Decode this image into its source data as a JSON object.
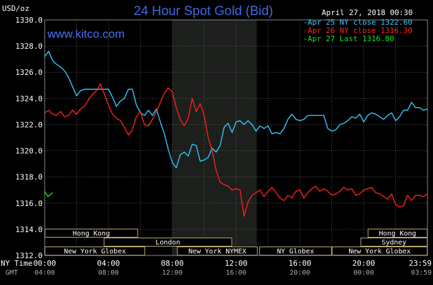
{
  "header": {
    "title": "24 Hour Spot Gold (Bid)",
    "units": "USD/oz",
    "date_time": "April 27, 2018 00:30",
    "watermark": "www.kitco.com"
  },
  "legend": {
    "entries": [
      {
        "label": "Apr 25 NY close 1322.60",
        "color": "#33c8ff"
      },
      {
        "label": "Apr 26 NY close 1316.30",
        "color": "#ff2020"
      },
      {
        "label": "Apr 27 Last 1316.80",
        "color": "#22dd22"
      }
    ]
  },
  "x_axis": {
    "ny_time_label": "NY Time",
    "gmt_label": "GMT",
    "ticks": [
      {
        "hour": 0,
        "ny": "00:00",
        "gmt": "04:00"
      },
      {
        "hour": 4,
        "ny": "04:00",
        "gmt": "08:00"
      },
      {
        "hour": 8,
        "ny": "08:00",
        "gmt": "12:00"
      },
      {
        "hour": 12,
        "ny": "12:00",
        "gmt": "16:00"
      },
      {
        "hour": 16,
        "ny": "16:00",
        "gmt": "20:00"
      },
      {
        "hour": 20,
        "ny": "20:00",
        "gmt": "00:00"
      },
      {
        "hour": 24,
        "ny": "23:59",
        "gmt": "03:59"
      }
    ]
  },
  "sessions": [
    {
      "label": "Hong Kong",
      "start": 0.0,
      "end": 5.85,
      "row": 0
    },
    {
      "label": "London",
      "start": 3.7,
      "end": 11.75,
      "row": 1
    },
    {
      "label": "New York Globex",
      "start": 0.0,
      "end": 6.3,
      "row": 2
    },
    {
      "label": "New York NYMEX",
      "start": 8.3,
      "end": 13.35,
      "row": 2
    },
    {
      "label": "NY Globex",
      "start": 13.45,
      "end": 18.0,
      "row": 2
    },
    {
      "label": "Hong Kong",
      "start": 20.25,
      "end": 24.0,
      "row": 0
    },
    {
      "label": "Sydney",
      "start": 19.8,
      "end": 24.0,
      "row": 1
    },
    {
      "label": "New York Globex",
      "start": 18.0,
      "end": 24.0,
      "row": 2
    }
  ],
  "chart_data": {
    "type": "line",
    "title": "24 Hour Spot Gold (Bid)",
    "ylabel": "USD/oz",
    "ylim": [
      1312.0,
      1330.0
    ],
    "xlim_hours": [
      0,
      24
    ],
    "y_ticks": [
      1312.0,
      1314.0,
      1316.0,
      1318.0,
      1320.0,
      1322.0,
      1324.0,
      1326.0,
      1328.0,
      1330.0
    ],
    "grid": true,
    "legend_position": "top-right",
    "highlight_hours": [
      8.0,
      13.3
    ],
    "series": [
      {
        "name": "Apr 25",
        "color": "#33c8ff",
        "x": [
          0,
          0.25,
          0.5,
          0.75,
          1.0,
          1.25,
          1.5,
          1.75,
          2.0,
          2.25,
          2.5,
          2.75,
          3.0,
          3.5,
          4.0,
          4.25,
          4.5,
          4.75,
          5.0,
          5.25,
          5.5,
          5.75,
          6.0,
          6.25,
          6.5,
          6.75,
          7.0,
          7.25,
          7.5,
          7.75,
          8.0,
          8.25,
          8.5,
          8.75,
          9.0,
          9.25,
          9.5,
          9.75,
          10.0,
          10.25,
          10.5,
          10.75,
          11.0,
          11.25,
          11.5,
          11.75,
          12.0,
          12.25,
          12.5,
          12.75,
          13.0,
          13.25,
          13.5,
          13.75,
          14.0,
          14.25,
          14.5,
          14.75,
          15.0,
          15.25,
          15.5,
          15.75,
          16.0,
          16.25,
          16.5,
          16.75,
          17.0,
          17.25,
          17.5,
          17.75,
          18.0,
          18.25,
          18.5,
          18.75,
          19.0,
          19.25,
          19.5,
          19.75,
          20.0,
          20.25,
          20.5,
          20.75,
          21.0,
          21.25,
          21.5,
          21.75,
          22.0,
          22.25,
          22.5,
          22.75,
          23.0,
          23.25,
          23.5,
          23.75,
          24.0
        ],
        "values": [
          1327.2,
          1327.6,
          1326.9,
          1326.6,
          1326.4,
          1326.1,
          1325.6,
          1324.9,
          1324.2,
          1324.6,
          1324.7,
          1324.7,
          1324.7,
          1324.7,
          1324.7,
          1324.1,
          1323.4,
          1323.8,
          1324.0,
          1324.7,
          1324.7,
          1323.5,
          1322.9,
          1322.7,
          1323.1,
          1322.7,
          1323.2,
          1322.2,
          1321.3,
          1320.1,
          1319.1,
          1318.7,
          1319.7,
          1319.9,
          1319.6,
          1320.5,
          1320.4,
          1319.2,
          1319.3,
          1319.5,
          1320.2,
          1319.9,
          1320.4,
          1321.8,
          1322.1,
          1321.4,
          1322.2,
          1322.3,
          1322.0,
          1322.3,
          1322.0,
          1321.5,
          1321.9,
          1321.7,
          1321.9,
          1321.3,
          1321.4,
          1321.3,
          1321.7,
          1322.4,
          1322.8,
          1322.4,
          1322.3,
          1322.4,
          1322.7,
          1322.7,
          1322.7,
          1322.7,
          1322.7,
          1321.7,
          1321.5,
          1321.6,
          1322.0,
          1322.1,
          1322.3,
          1322.6,
          1322.5,
          1322.8,
          1322.2,
          1322.7,
          1322.9,
          1322.8,
          1322.6,
          1322.4,
          1322.7,
          1322.9,
          1322.3,
          1322.6,
          1323.1,
          1323.1,
          1323.7,
          1323.3,
          1323.3,
          1323.1,
          1323.2
        ]
      },
      {
        "name": "Apr 26",
        "color": "#ff2020",
        "x": [
          0,
          0.25,
          0.5,
          0.75,
          1.0,
          1.25,
          1.5,
          1.75,
          2.0,
          2.25,
          2.5,
          2.75,
          3.0,
          3.25,
          3.5,
          3.75,
          4.0,
          4.25,
          4.5,
          4.75,
          5.0,
          5.25,
          5.5,
          5.75,
          6.0,
          6.25,
          6.5,
          6.75,
          7.0,
          7.25,
          7.5,
          7.75,
          8.0,
          8.25,
          8.5,
          8.75,
          9.0,
          9.25,
          9.5,
          9.75,
          10.0,
          10.25,
          10.5,
          10.75,
          11.0,
          11.25,
          11.5,
          11.75,
          12.0,
          12.25,
          12.5,
          12.75,
          13.0,
          13.25,
          13.5,
          13.75,
          14.0,
          14.25,
          14.5,
          14.75,
          15.0,
          15.25,
          15.5,
          15.75,
          16.0,
          16.25,
          16.5,
          16.75,
          17.0,
          17.25,
          17.5,
          17.75,
          18.0,
          18.25,
          18.5,
          18.75,
          19.0,
          19.25,
          19.5,
          19.75,
          20.0,
          20.25,
          20.5,
          20.75,
          21.0,
          21.25,
          21.5,
          21.75,
          22.0,
          22.25,
          22.5,
          22.75,
          23.0,
          23.25,
          23.5,
          23.75,
          24.0
        ],
        "values": [
          1322.9,
          1323.1,
          1322.8,
          1322.7,
          1323.0,
          1322.6,
          1322.7,
          1323.1,
          1322.8,
          1323.2,
          1323.4,
          1323.9,
          1324.3,
          1324.6,
          1325.1,
          1324.3,
          1323.5,
          1322.8,
          1322.5,
          1322.3,
          1321.8,
          1321.2,
          1321.6,
          1322.6,
          1323.0,
          1322.0,
          1321.9,
          1322.4,
          1323.0,
          1323.7,
          1324.4,
          1324.8,
          1324.5,
          1323.3,
          1322.4,
          1321.9,
          1322.5,
          1324.0,
          1323.0,
          1323.6,
          1322.7,
          1321.0,
          1320.0,
          1318.5,
          1317.6,
          1317.4,
          1317.3,
          1317.0,
          1317.1,
          1317.0,
          1315.0,
          1316.1,
          1316.6,
          1316.8,
          1317.0,
          1316.5,
          1316.9,
          1317.2,
          1316.8,
          1316.4,
          1316.2,
          1316.6,
          1316.4,
          1316.9,
          1317.0,
          1316.4,
          1316.8,
          1317.1,
          1317.3,
          1316.9,
          1317.1,
          1316.9,
          1316.6,
          1316.7,
          1316.9,
          1317.2,
          1317.0,
          1317.1,
          1316.6,
          1316.7,
          1317.0,
          1317.1,
          1317.2,
          1316.8,
          1316.7,
          1316.5,
          1316.3,
          1316.7,
          1315.9,
          1315.7,
          1315.8,
          1316.6,
          1316.2,
          1316.6,
          1316.6,
          1316.5,
          1316.7
        ]
      },
      {
        "name": "Apr 27",
        "color": "#22dd22",
        "x": [
          0,
          0.1,
          0.2,
          0.3,
          0.4,
          0.5
        ],
        "values": [
          1316.9,
          1316.7,
          1316.5,
          1316.6,
          1316.7,
          1316.8
        ]
      }
    ]
  }
}
